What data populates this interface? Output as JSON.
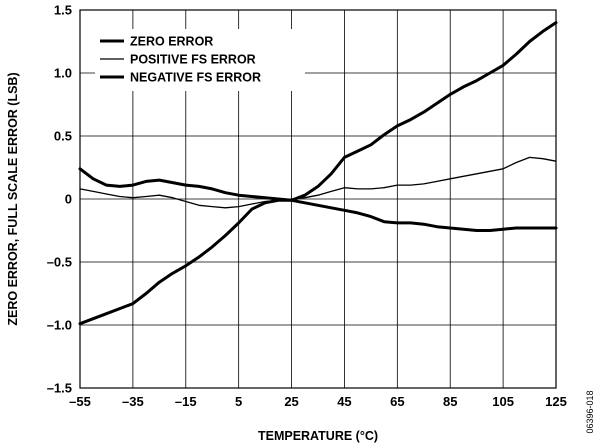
{
  "chart_data": {
    "type": "line",
    "xlabel": "TEMPERATURE (°C)",
    "ylabel": "ZERO ERROR, FULL SCALE ERROR (LSB)",
    "xlim": [
      -55,
      125
    ],
    "ylim": [
      -1.5,
      1.5
    ],
    "x_ticks": [
      -55,
      -35,
      -15,
      5,
      25,
      45,
      65,
      85,
      105,
      125
    ],
    "x_tick_labels": [
      "–55",
      "–35",
      "–15",
      "5",
      "25",
      "45",
      "65",
      "85",
      "105",
      "125"
    ],
    "y_ticks": [
      1.5,
      1.0,
      0.5,
      0,
      -0.5,
      -1.0,
      -1.5
    ],
    "y_tick_labels": [
      "1.5",
      "1.0",
      "0.5",
      "0",
      "–0.5",
      "–1.0",
      "–1.5"
    ],
    "grid": true,
    "legend_position": "top-left",
    "series": [
      {
        "name": "ZERO ERROR",
        "x": [
          -55,
          -50,
          -45,
          -40,
          -35,
          -30,
          -25,
          -20,
          -15,
          -10,
          -5,
          0,
          5,
          10,
          15,
          20,
          25,
          30,
          35,
          40,
          45,
          50,
          55,
          60,
          65,
          70,
          75,
          80,
          85,
          90,
          95,
          100,
          105,
          110,
          115,
          120,
          125
        ],
        "y": [
          0.24,
          0.16,
          0.11,
          0.1,
          0.11,
          0.14,
          0.15,
          0.13,
          0.11,
          0.1,
          0.08,
          0.05,
          0.03,
          0.02,
          0.01,
          0.0,
          -0.01,
          -0.03,
          -0.05,
          -0.07,
          -0.09,
          -0.11,
          -0.14,
          -0.18,
          -0.19,
          -0.19,
          -0.2,
          -0.22,
          -0.23,
          -0.24,
          -0.25,
          -0.25,
          -0.24,
          -0.23,
          -0.23,
          -0.23,
          -0.23
        ]
      },
      {
        "name": "POSITIVE FS ERROR",
        "x": [
          -55,
          -50,
          -45,
          -40,
          -35,
          -30,
          -25,
          -20,
          -15,
          -10,
          -5,
          0,
          5,
          10,
          15,
          20,
          25,
          30,
          35,
          40,
          45,
          50,
          55,
          60,
          65,
          70,
          75,
          80,
          85,
          90,
          95,
          100,
          105,
          110,
          115,
          120,
          125
        ],
        "y": [
          0.08,
          0.06,
          0.04,
          0.02,
          0.01,
          0.02,
          0.03,
          0.01,
          -0.02,
          -0.05,
          -0.06,
          -0.07,
          -0.06,
          -0.04,
          -0.02,
          -0.01,
          0.0,
          0.01,
          0.03,
          0.06,
          0.09,
          0.08,
          0.08,
          0.09,
          0.11,
          0.11,
          0.12,
          0.14,
          0.16,
          0.18,
          0.2,
          0.22,
          0.24,
          0.29,
          0.33,
          0.32,
          0.3
        ]
      },
      {
        "name": "NEGATIVE FS ERROR",
        "x": [
          -55,
          -50,
          -45,
          -40,
          -35,
          -30,
          -25,
          -20,
          -15,
          -10,
          -5,
          0,
          5,
          10,
          15,
          20,
          25,
          30,
          35,
          40,
          45,
          50,
          55,
          60,
          65,
          70,
          75,
          80,
          85,
          90,
          95,
          100,
          105,
          110,
          115,
          120,
          125
        ],
        "y": [
          -0.99,
          -0.95,
          -0.91,
          -0.87,
          -0.83,
          -0.75,
          -0.66,
          -0.59,
          -0.53,
          -0.46,
          -0.38,
          -0.29,
          -0.19,
          -0.08,
          -0.03,
          -0.01,
          -0.01,
          0.03,
          0.1,
          0.2,
          0.33,
          0.38,
          0.43,
          0.51,
          0.58,
          0.63,
          0.69,
          0.76,
          0.83,
          0.89,
          0.94,
          1.0,
          1.06,
          1.15,
          1.25,
          1.33,
          1.4
        ]
      }
    ]
  },
  "figure_id": "06396-018"
}
